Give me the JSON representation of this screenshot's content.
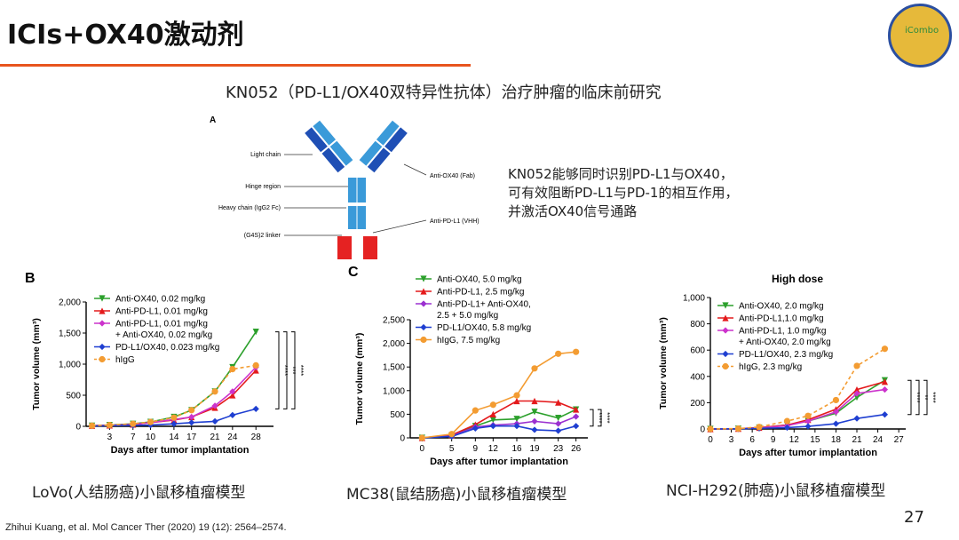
{
  "header": {
    "title": "ICIs+OX40激动剂",
    "logo": "iCombo"
  },
  "subtitle": "KN052（PD-L1/OX40双特异性抗体）治疗肿瘤的临床前研究",
  "diagram": {
    "panel": "A",
    "labels": [
      "Light chain",
      "Hinge region",
      "Heavy chain (IgG2 Fc)",
      "(G4S)2 linker",
      "Anti-OX40 (Fab)",
      "Anti-PD-L1 (VHH)"
    ]
  },
  "description": [
    "KN052能够同时识别PD-L1与OX40，",
    "可有效阻断PD-L1与PD-1的相互作用，",
    "并激活OX40信号通路"
  ],
  "captions": [
    "LoVo(人结肠癌)小鼠移植瘤模型",
    "MC38(鼠结肠癌)小鼠移植瘤模型",
    "NCI-H292(肺癌)小鼠移植瘤模型"
  ],
  "citation": "Zhihui Kuang, et al. Mol Cancer Ther (2020) 19 (12): 2564–2574.",
  "page_number": "27",
  "chart_data": [
    {
      "type": "line",
      "title": "B",
      "x_label": "Days after tumor implantation",
      "y_label": "Tumor volume (mm³)",
      "x": [
        0,
        3,
        7,
        10,
        14,
        17,
        21,
        24,
        28
      ],
      "xlim": [
        -1,
        31
      ],
      "xticks": [
        3,
        7,
        10,
        14,
        17,
        21,
        24,
        28
      ],
      "ylim": [
        0,
        2000
      ],
      "yticks": [
        0,
        500,
        {
          "value": 1000,
          "label": "1,000"
        },
        {
          "value": 1500,
          "label": "1,500"
        },
        {
          "value": 2000,
          "label": "2,000"
        }
      ],
      "series": [
        {
          "name": "Anti-OX40, 0.02 mg/kg",
          "color": "#2ca02c",
          "marker": "tri-down",
          "values": [
            10,
            20,
            40,
            70,
            150,
            260,
            560,
            950,
            1520
          ]
        },
        {
          "name": "Anti-PD-L1, 0.01 mg/kg",
          "color": "#e41a1c",
          "marker": "tri-up",
          "values": [
            10,
            15,
            30,
            60,
            100,
            150,
            300,
            500,
            900
          ]
        },
        {
          "name": "Anti-PD-L1, 0.01 mg/kg\n+ Anti-OX40, 0.02 mg/kg",
          "color": "#cc33cc",
          "marker": "diamond",
          "values": [
            10,
            15,
            30,
            60,
            110,
            150,
            330,
            560,
            950
          ]
        },
        {
          "name": "PD-L1/OX40, 0.023 mg/kg",
          "color": "#1f3fd1",
          "marker": "diamond",
          "values": [
            5,
            10,
            15,
            20,
            40,
            60,
            80,
            180,
            280
          ]
        },
        {
          "name": "hIgG",
          "color": "#f39c32",
          "marker": "circle",
          "dashed": true,
          "values": [
            10,
            20,
            40,
            70,
            140,
            260,
            560,
            920,
            980
          ]
        }
      ],
      "annotations": [
        "****",
        "***",
        "****"
      ]
    },
    {
      "type": "line",
      "title": "C",
      "x_label": "Days after tumor implantation",
      "y_label": "Tumor volume (mm³)",
      "x": [
        0,
        5,
        9,
        12,
        16,
        19,
        23,
        26
      ],
      "xlim": [
        -2,
        28
      ],
      "xticks": [
        0,
        5,
        9,
        12,
        16,
        19,
        23,
        26
      ],
      "ylim": [
        0,
        2500
      ],
      "yticks": [
        0,
        500,
        {
          "value": 1000,
          "label": "1,000"
        },
        {
          "value": 1500,
          "label": "1,500"
        },
        {
          "value": 2000,
          "label": "2,000"
        },
        {
          "value": 2500,
          "label": "2,500"
        }
      ],
      "series": [
        {
          "name": "Anti-OX40, 5.0 mg/kg",
          "color": "#2ca02c",
          "marker": "tri-down",
          "values": [
            0,
            50,
            250,
            380,
            400,
            550,
            420,
            600
          ]
        },
        {
          "name": "Anti-PD-L1, 2.5 mg/kg",
          "color": "#e41a1c",
          "marker": "tri-up",
          "values": [
            0,
            60,
            280,
            500,
            780,
            780,
            750,
            600
          ]
        },
        {
          "name": "Anti-PD-L1+ Anti-OX40,\n2.5 + 5.0 mg/kg",
          "color": "#9b30d0",
          "marker": "diamond",
          "values": [
            0,
            40,
            230,
            270,
            300,
            350,
            300,
            450
          ]
        },
        {
          "name": "PD-L1/OX40, 5.8 mg/kg",
          "color": "#1f3fd1",
          "marker": "diamond",
          "values": [
            0,
            30,
            200,
            250,
            250,
            170,
            150,
            250
          ]
        },
        {
          "name": "hIgG, 7.5 mg/kg",
          "color": "#f39c32",
          "marker": "circle",
          "values": [
            0,
            80,
            580,
            700,
            900,
            1470,
            1780,
            1820
          ]
        }
      ],
      "annotations": [
        "****",
        "****"
      ]
    },
    {
      "type": "line",
      "title": "High dose",
      "x_label": "Days after tumor implantation",
      "y_label": "Tumor volume (mm³)",
      "x": [
        0,
        4,
        7,
        11,
        14,
        18,
        21,
        25
      ],
      "xlim": [
        0,
        28
      ],
      "xticks": [
        0,
        3,
        6,
        9,
        12,
        15,
        18,
        21,
        24,
        27
      ],
      "ylim": [
        0,
        1000
      ],
      "yticks": [
        0,
        200,
        400,
        600,
        800,
        {
          "value": 1000,
          "label": "1,000"
        }
      ],
      "series": [
        {
          "name": "Anti-OX40, 2.0 mg/kg",
          "color": "#2ca02c",
          "marker": "tri-down",
          "values": [
            0,
            2,
            10,
            30,
            60,
            120,
            240,
            370
          ]
        },
        {
          "name": "Anti-PD-L1,1.0 mg/kg",
          "color": "#e41a1c",
          "marker": "tri-up",
          "values": [
            0,
            2,
            10,
            30,
            70,
            150,
            300,
            360
          ]
        },
        {
          "name": "Anti-PD-L1, 1.0 mg/kg\n+ Anti-OX40, 2.0 mg/kg",
          "color": "#cc33cc",
          "marker": "diamond",
          "values": [
            0,
            2,
            8,
            25,
            60,
            130,
            270,
            300
          ]
        },
        {
          "name": "PD-L1/OX40, 2.3 mg/kg",
          "color": "#1f3fd1",
          "marker": "diamond",
          "values": [
            0,
            1,
            5,
            10,
            20,
            40,
            80,
            110
          ]
        },
        {
          "name": "hIgG, 2.3 mg/kg",
          "color": "#f39c32",
          "marker": "circle",
          "dashed": true,
          "values": [
            0,
            3,
            15,
            60,
            100,
            220,
            480,
            610
          ]
        }
      ],
      "annotations": [
        "****",
        "**",
        "****"
      ]
    }
  ]
}
